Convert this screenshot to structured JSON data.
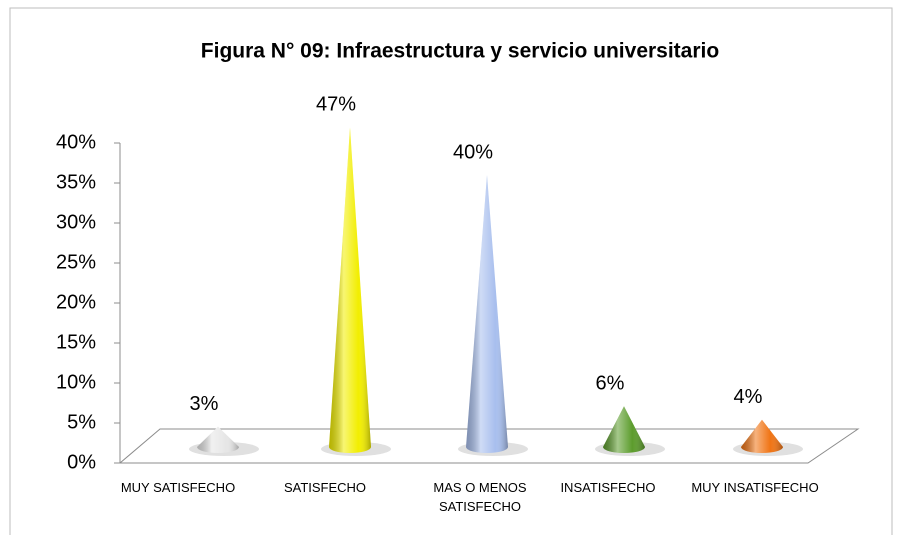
{
  "chart_data": {
    "type": "cone",
    "title": "Figura N° 09: Infraestructura y servicio universitario",
    "categories": [
      "MUY SATISFECHO",
      "SATISFECHO",
      "MAS O MENOS SATISFECHO",
      "INSATISFECHO",
      "MUY INSATISFECHO"
    ],
    "values": [
      3,
      47,
      40,
      6,
      4
    ],
    "value_labels": [
      "3%",
      "47%",
      "40%",
      "6%",
      "4%"
    ],
    "colors": [
      "#e6e6e6",
      "#f2ee00",
      "#a8bfee",
      "#5c9c2c",
      "#f07414"
    ],
    "ylim": [
      0,
      40
    ],
    "yticks": [
      {
        "value": 0,
        "label": "0%"
      },
      {
        "value": 5,
        "label": "5%"
      },
      {
        "value": 10,
        "label": "10%"
      },
      {
        "value": 15,
        "label": "15%"
      },
      {
        "value": 20,
        "label": "20%"
      },
      {
        "value": 25,
        "label": "25%"
      },
      {
        "value": 30,
        "label": "30%"
      },
      {
        "value": 35,
        "label": "35%"
      },
      {
        "value": 40,
        "label": "40%"
      }
    ],
    "grid": false
  }
}
